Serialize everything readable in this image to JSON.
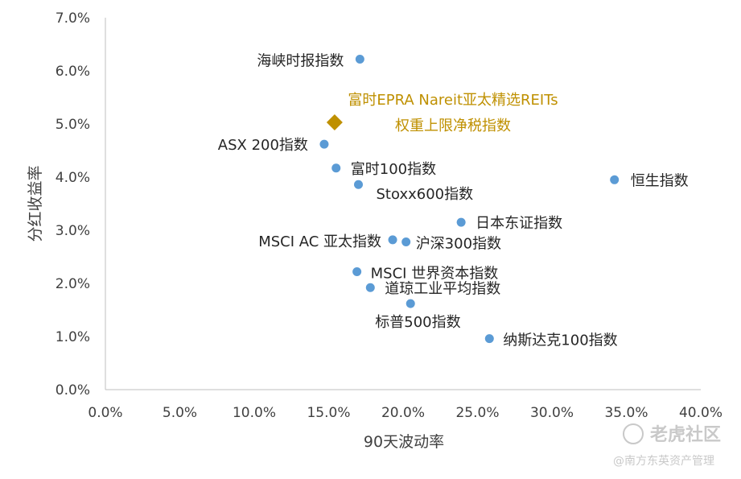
{
  "colors": {
    "point": "#5B9BD5",
    "highlight": "#BF9000",
    "axis": "#BFBFBF",
    "text": "#404040",
    "watermark": "#C9C9C9"
  },
  "chart_data": {
    "type": "scatter",
    "xlabel": "90天波动率",
    "ylabel": "分红收益率",
    "xlim": [
      0,
      40
    ],
    "ylim": [
      0,
      7
    ],
    "x_ticks": [
      "0.0%",
      "5.0%",
      "10.0%",
      "15.0%",
      "20.0%",
      "25.0%",
      "30.0%",
      "35.0%",
      "40.0%"
    ],
    "y_ticks": [
      "0.0%",
      "1.0%",
      "2.0%",
      "3.0%",
      "4.0%",
      "5.0%",
      "6.0%",
      "7.0%"
    ],
    "grid": false,
    "legend": "none",
    "points": [
      {
        "label": "海峡时报指数",
        "x": 17.1,
        "y": 6.22
      },
      {
        "label": "ASX 200指数",
        "x": 14.7,
        "y": 4.62
      },
      {
        "label": "富时100指数",
        "x": 15.5,
        "y": 4.17
      },
      {
        "label": "Stoxx600指数",
        "x": 17.0,
        "y": 3.86
      },
      {
        "label": "恒生指数",
        "x": 34.2,
        "y": 3.95
      },
      {
        "label": "日本东证指数",
        "x": 23.9,
        "y": 3.15
      },
      {
        "label": "MSCI AC 亚太指数",
        "x": 19.3,
        "y": 2.82
      },
      {
        "label": "沪深300指数",
        "x": 20.2,
        "y": 2.78
      },
      {
        "label": "MSCI 世界资本指数",
        "x": 16.9,
        "y": 2.22
      },
      {
        "label": "道琼工业平均指数",
        "x": 17.8,
        "y": 1.92
      },
      {
        "label": "标普500指数",
        "x": 20.5,
        "y": 1.62
      },
      {
        "label": "纳斯达克100指数",
        "x": 25.8,
        "y": 0.96
      }
    ],
    "highlight": {
      "label_lines": [
        "富时EPRA Nareit亚太精选REITs",
        "权重上限净税指数"
      ],
      "x": 15.4,
      "y": 5.03
    }
  },
  "watermark": {
    "main": "老虎社区",
    "sub": "@南方东英资产管理"
  }
}
